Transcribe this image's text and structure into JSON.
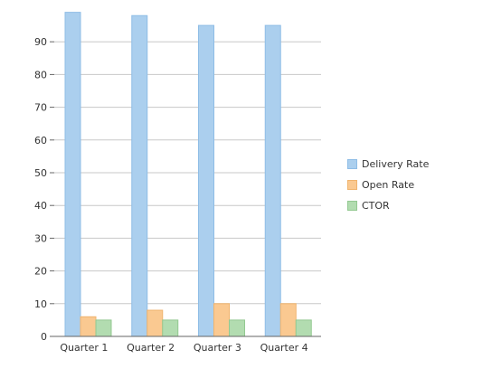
{
  "chart_data": {
    "type": "bar",
    "categories": [
      "Quarter 1",
      "Quarter 2",
      "Quarter 3",
      "Quarter 4"
    ],
    "series": [
      {
        "name": "Delivery Rate",
        "values": [
          99,
          98,
          95,
          95
        ],
        "color": "#abcfee",
        "stroke": "#8fbde6"
      },
      {
        "name": "Open Rate",
        "values": [
          6,
          8,
          10,
          10
        ],
        "color": "#fac991",
        "stroke": "#f0b46e"
      },
      {
        "name": "CTOR",
        "values": [
          5,
          5,
          5,
          5
        ],
        "color": "#b2dcb0",
        "stroke": "#93c991"
      }
    ],
    "title": "",
    "xlabel": "",
    "ylabel": "",
    "ylim": [
      0,
      100
    ],
    "yticks": [
      0,
      10,
      20,
      30,
      40,
      50,
      60,
      70,
      80,
      90
    ],
    "grid": true,
    "legend_position": "right"
  }
}
